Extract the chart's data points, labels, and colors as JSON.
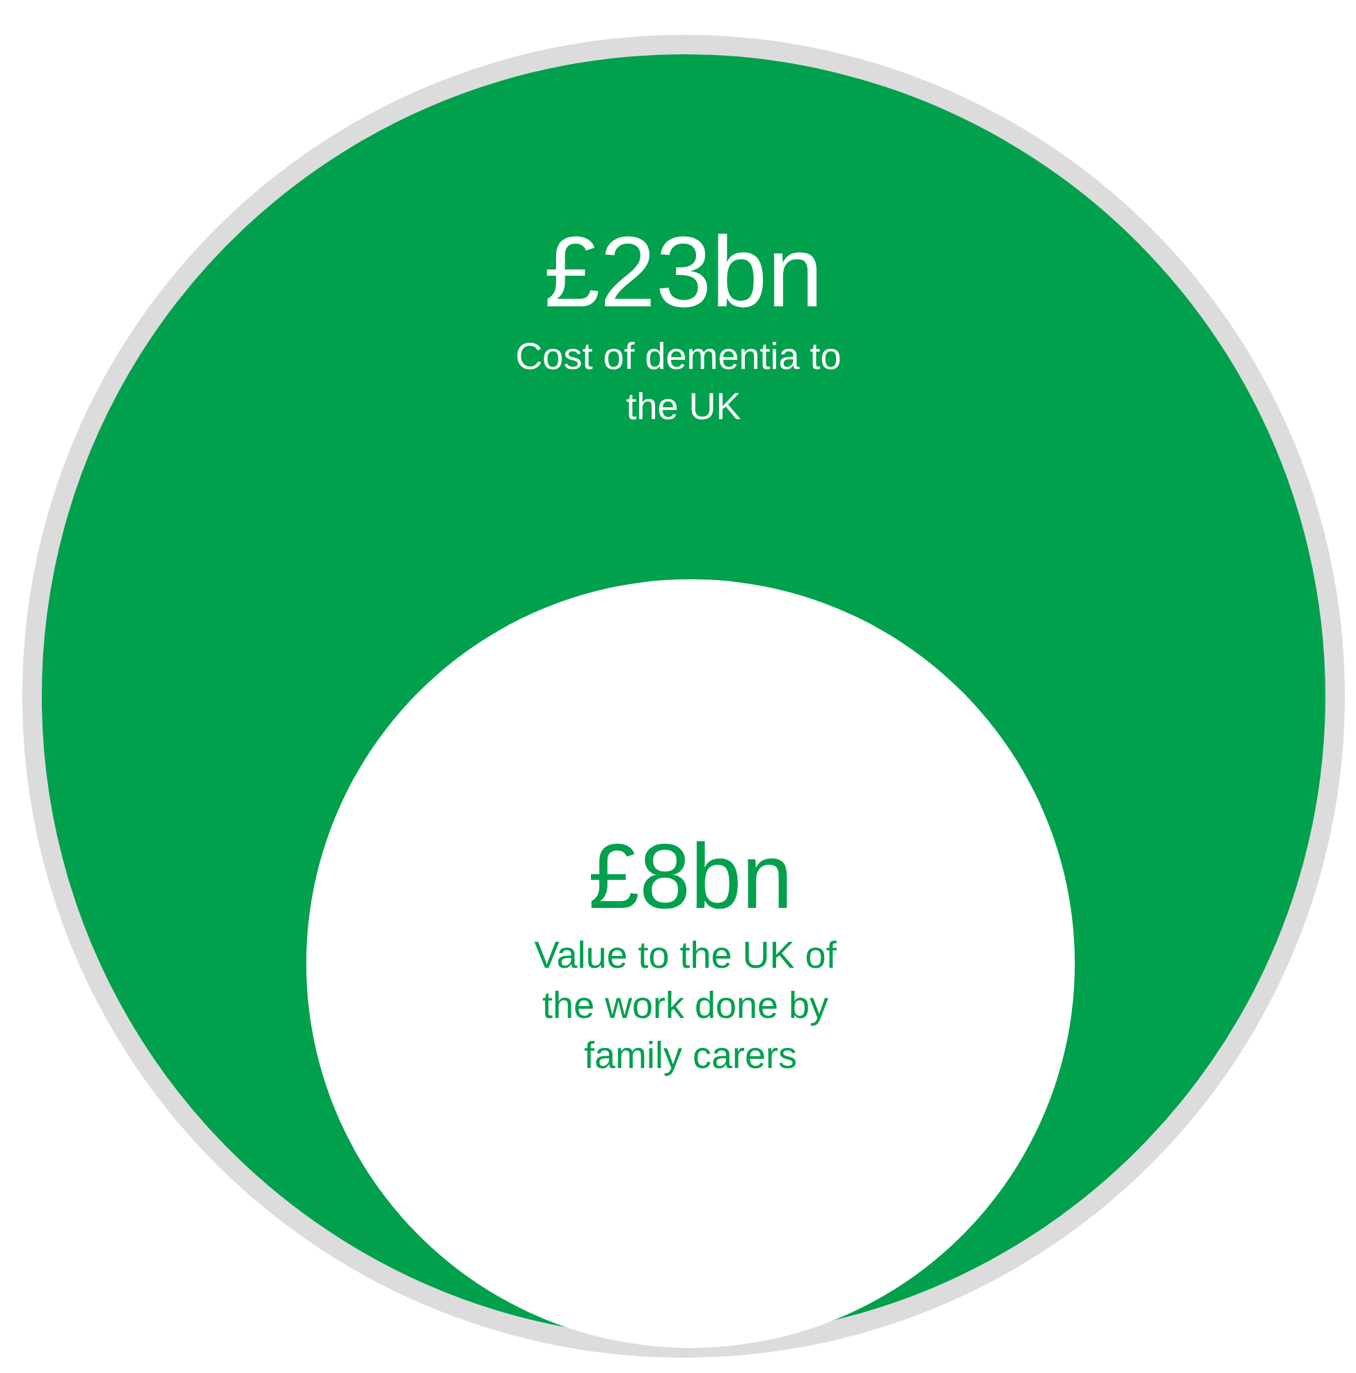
{
  "chart_data": {
    "type": "other",
    "categories": [
      "Cost of dementia to the UK",
      "Value to the UK of the work done by family carers"
    ],
    "values": [
      23,
      8
    ],
    "value_labels": [
      "£23bn",
      "£8bn"
    ],
    "colors": [
      "#00a04d",
      "#ffffff"
    ]
  }
}
